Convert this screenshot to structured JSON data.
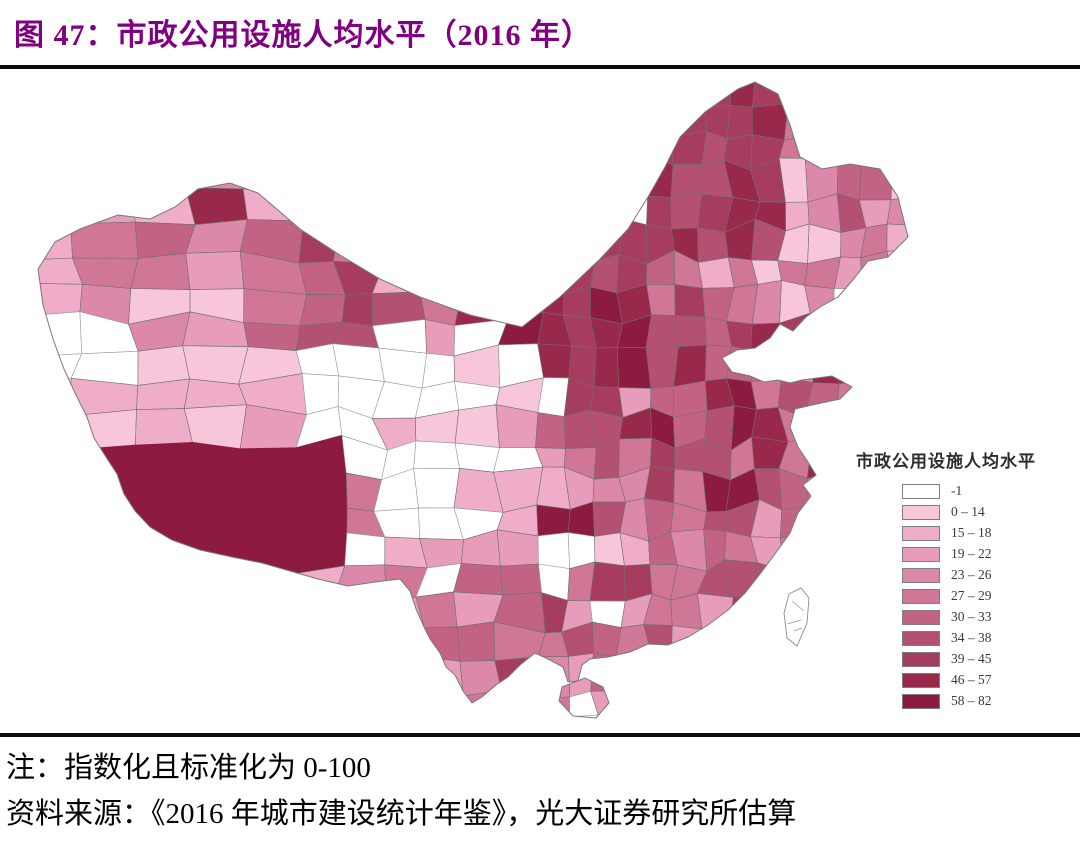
{
  "figure": {
    "number_label": "图 47：",
    "title": "图 47：市政公用设施人均水平（2016 年）",
    "title_color": "#800080",
    "note": "注：指数化且标准化为 0-100",
    "source": "资料来源：《2016 年城市建设统计年鉴》，光大证券研究所估算"
  },
  "chart_data": {
    "type": "choropleth_map",
    "region": "China (prefecture-level divisions)",
    "year": "2016",
    "title": "市政公用设施人均水平（2016 年）",
    "value_note": "指数化且标准化为 0-100",
    "legend": {
      "title": "市政公用设施人均水平",
      "position": "right",
      "classes": [
        {
          "label": "-1",
          "color": "#FFFFFF"
        },
        {
          "label": "0 – 14",
          "color": "#F7C6DA"
        },
        {
          "label": "15 – 18",
          "color": "#F0ADC9"
        },
        {
          "label": "19 – 22",
          "color": "#E79CBC"
        },
        {
          "label": "23 – 26",
          "color": "#DB88AA"
        },
        {
          "label": "27 – 29",
          "color": "#D07697"
        },
        {
          "label": "30 – 33",
          "color": "#C26385"
        },
        {
          "label": "34 – 38",
          "color": "#B45071"
        },
        {
          "label": "39 – 45",
          "color": "#A63D5E"
        },
        {
          "label": "46 – 57",
          "color": "#98294B"
        },
        {
          "label": "58 – 82",
          "color": "#8D1A3F"
        }
      ]
    },
    "visual_pattern": "Eastern and coastal prefectures darker (higher per-capita municipal utility level); Xinjiang and Qinghai mostly light pink or blank; western Tibet a single large dark region; Taiwan blank (no data)."
  }
}
